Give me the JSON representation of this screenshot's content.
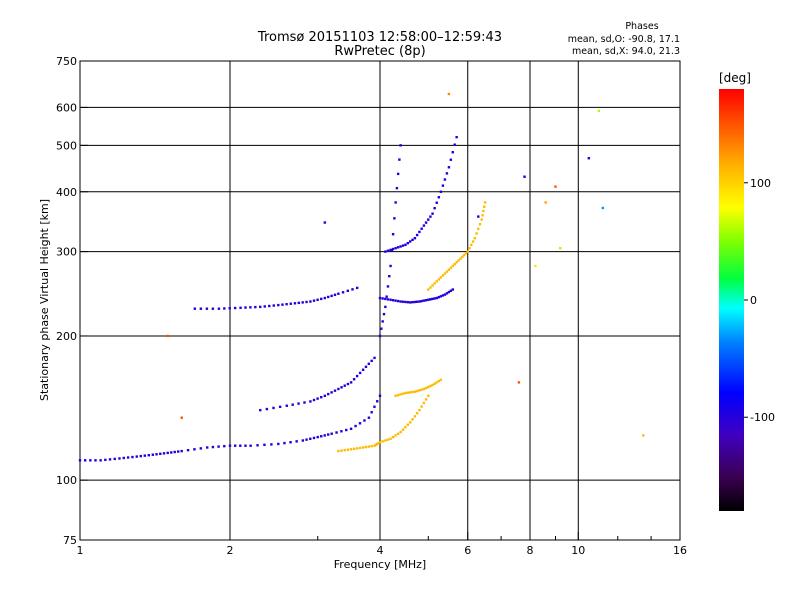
{
  "chart_data": {
    "type": "scatter",
    "title": "Tromsø 20151103 12:58:00–12:59:43",
    "subtitle": "RwPretec (8p)",
    "xlabel": "Frequency [MHz]",
    "ylabel": "Stationary phase Virtual Height [km]",
    "x_scale": "log",
    "y_scale": "log",
    "xlim": [
      1,
      16
    ],
    "ylim": [
      75,
      750
    ],
    "x_ticks": [
      1,
      2,
      4,
      6,
      8,
      10,
      16
    ],
    "x_tick_labels": [
      "1",
      "2",
      "4",
      "6",
      "8",
      "10",
      "16"
    ],
    "y_ticks": [
      75,
      100,
      200,
      300,
      400,
      500,
      600,
      750
    ],
    "y_tick_labels": [
      "75",
      "100",
      "200",
      "300",
      "400",
      "500",
      "600",
      "750"
    ],
    "grid": true,
    "legend": {
      "title": "Phases",
      "lines": [
        "mean, sd,O: -90.8, 17.1",
        "mean, sd,X:  94.0, 21.3"
      ],
      "position": "top-right"
    },
    "colorbar": {
      "label": "[deg]",
      "range": [
        -180,
        180
      ],
      "ticks": [
        100,
        0,
        -100
      ],
      "tick_labels": [
        "100",
        "0",
        "-100"
      ],
      "position": "right"
    },
    "traces": [
      {
        "x": [
          1.0,
          1.1,
          1.2,
          1.3,
          1.4,
          1.5,
          1.6,
          1.8,
          2.0,
          2.2,
          2.5,
          2.8,
          3.0,
          3.2,
          3.5,
          3.8,
          4.0
        ],
        "y": [
          110,
          110,
          111,
          112,
          113,
          114,
          115,
          117,
          118,
          118,
          119,
          121,
          123,
          125,
          128,
          135,
          150
        ],
        "phase": -100
      },
      {
        "x": [
          3.3,
          3.5,
          3.7,
          3.9,
          4.0,
          4.2,
          4.4,
          4.6,
          4.8,
          5.0
        ],
        "y": [
          115,
          116,
          117,
          118,
          120,
          122,
          126,
          132,
          140,
          150
        ],
        "phase": 110
      },
      {
        "x": [
          4.3,
          4.5,
          4.7,
          4.9,
          5.1,
          5.3
        ],
        "y": [
          150,
          152,
          153,
          155,
          158,
          162
        ],
        "phase": 110
      },
      {
        "x": [
          1.7,
          1.9,
          2.1,
          2.3,
          2.5,
          2.7,
          2.9,
          3.1,
          3.3,
          3.6
        ],
        "y": [
          228,
          228,
          229,
          230,
          232,
          234,
          236,
          240,
          245,
          252
        ],
        "phase": -100
      },
      {
        "x": [
          2.3,
          2.6,
          2.9,
          3.1,
          3.3,
          3.5,
          3.7,
          3.9
        ],
        "y": [
          140,
          143,
          146,
          150,
          155,
          160,
          170,
          180
        ],
        "phase": -100
      },
      {
        "x": [
          5.0,
          5.2,
          5.4,
          5.6,
          5.8,
          6.0,
          6.2,
          6.4,
          6.5
        ],
        "y": [
          250,
          260,
          270,
          280,
          290,
          300,
          320,
          350,
          380
        ],
        "phase": 110
      },
      {
        "x": [
          4.1,
          4.3,
          4.5,
          4.7,
          4.9,
          5.1,
          5.3,
          5.5,
          5.7
        ],
        "y": [
          300,
          305,
          310,
          320,
          340,
          360,
          400,
          450,
          520
        ],
        "phase": -95
      },
      {
        "x": [
          4.0,
          4.2,
          4.4,
          4.6,
          4.8,
          5.0,
          5.2,
          5.4,
          5.6
        ],
        "y": [
          240,
          238,
          236,
          235,
          236,
          238,
          240,
          244,
          250
        ],
        "phase": -100
      },
      {
        "x": [
          4.0,
          4.1,
          4.2,
          4.3,
          4.4
        ],
        "y": [
          200,
          230,
          280,
          380,
          500
        ],
        "phase": -100
      }
    ],
    "scatter": [
      {
        "x": 10.5,
        "y": 470,
        "phase": -100
      },
      {
        "x": 11.0,
        "y": 590,
        "phase": 60
      },
      {
        "x": 11.2,
        "y": 370,
        "phase": -30
      },
      {
        "x": 13.5,
        "y": 124,
        "phase": 110
      },
      {
        "x": 7.8,
        "y": 430,
        "phase": -80
      },
      {
        "x": 8.6,
        "y": 380,
        "phase": 120
      },
      {
        "x": 9.0,
        "y": 410,
        "phase": 150
      },
      {
        "x": 8.2,
        "y": 280,
        "phase": 90
      },
      {
        "x": 7.6,
        "y": 160,
        "phase": 150
      },
      {
        "x": 9.2,
        "y": 305,
        "phase": 60
      },
      {
        "x": 1.5,
        "y": 200,
        "phase": 150
      },
      {
        "x": 1.6,
        "y": 135,
        "phase": 150
      },
      {
        "x": 3.1,
        "y": 345,
        "phase": -100
      },
      {
        "x": 6.3,
        "y": 355,
        "phase": -100
      },
      {
        "x": 5.5,
        "y": 640,
        "phase": 130
      }
    ]
  }
}
